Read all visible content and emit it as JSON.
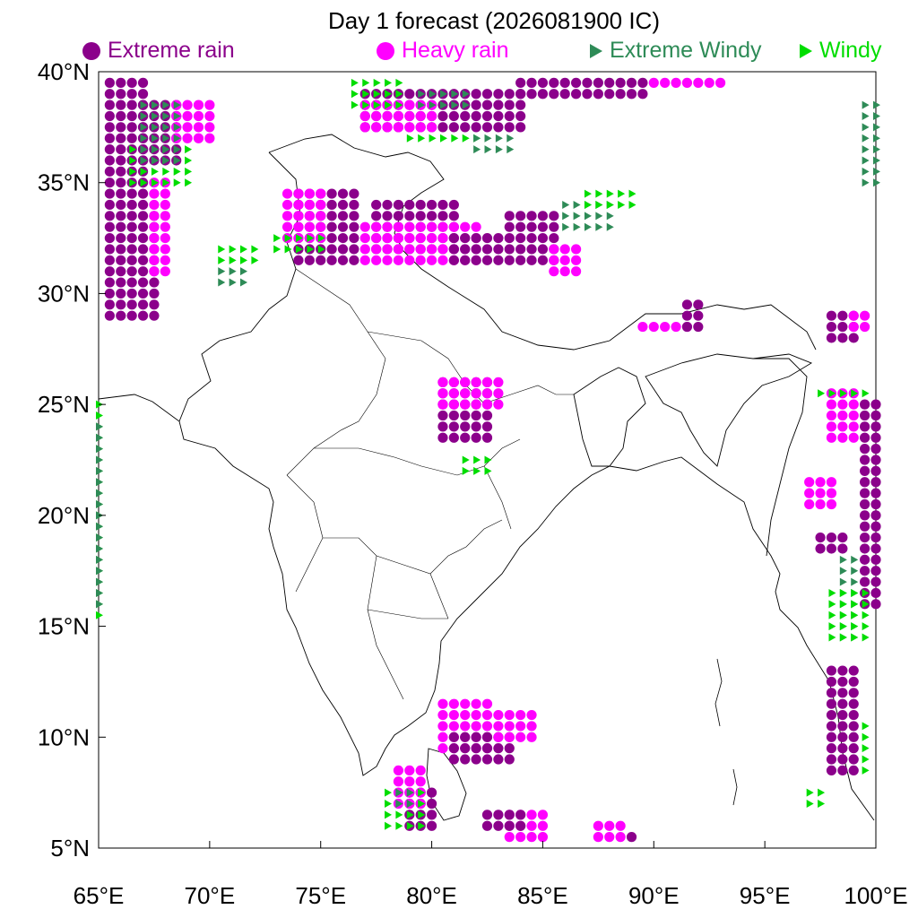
{
  "title": "Day 1 forecast (2026081900 IC)",
  "colors": {
    "extreme_rain": "#8b008b",
    "heavy_rain": "#ff00ff",
    "extreme_windy": "#2e8b57",
    "windy": "#00dd00",
    "border": "#000000"
  },
  "legend": [
    {
      "key": "extreme_rain",
      "label": "Extreme rain",
      "symbol": "circle"
    },
    {
      "key": "heavy_rain",
      "label": "Heavy rain",
      "symbol": "circle"
    },
    {
      "key": "extreme_windy",
      "label": "Extreme Windy",
      "symbol": "triangle"
    },
    {
      "key": "windy",
      "label": "Windy",
      "symbol": "triangle"
    }
  ],
  "map": {
    "lon_range": [
      65,
      100
    ],
    "lat_range": [
      5,
      40
    ],
    "grid_step": 0.5,
    "lon_ticks": [
      "65°E",
      "70°E",
      "75°E",
      "80°E",
      "85°E",
      "90°E",
      "95°E",
      "100°E"
    ],
    "lat_ticks": [
      "40°N",
      "35°N",
      "30°N",
      "25°N",
      "20°N",
      "15°N",
      "10°N",
      "5°N"
    ]
  },
  "rain_points": [
    {
      "type": "extreme_rain",
      "lon_range": [
        65.5,
        67
      ],
      "lat_range": [
        34,
        39.5
      ]
    },
    {
      "type": "extreme_rain",
      "lon_range": [
        67,
        68.5
      ],
      "lat_range": [
        36,
        38.5
      ]
    },
    {
      "type": "heavy_rain",
      "lon_range": [
        68.5,
        70
      ],
      "lat_range": [
        37,
        38.5
      ]
    },
    {
      "type": "extreme_rain",
      "lon_range": [
        65.5,
        67.5
      ],
      "lat_range": [
        29,
        33.5
      ]
    },
    {
      "type": "heavy_rain",
      "lon_range": [
        67.5,
        68
      ],
      "lat_range": [
        31,
        35
      ]
    },
    {
      "type": "extreme_rain",
      "lon_range": [
        74,
        76.5
      ],
      "lat_range": [
        31.5,
        34.5
      ]
    },
    {
      "type": "heavy_rain",
      "lon_range": [
        73.5,
        75
      ],
      "lat_range": [
        32.5,
        34.5
      ]
    },
    {
      "type": "extreme_rain",
      "lon_range": [
        77.5,
        81
      ],
      "lat_range": [
        32,
        34
      ]
    },
    {
      "type": "heavy_rain",
      "lon_range": [
        77,
        82
      ],
      "lat_range": [
        31.5,
        33
      ]
    },
    {
      "type": "extreme_rain",
      "lon_range": [
        81,
        83
      ],
      "lat_range": [
        31.5,
        32.5
      ]
    },
    {
      "type": "extreme_rain",
      "lon_range": [
        83.5,
        85.5
      ],
      "lat_range": [
        31.5,
        33.5
      ]
    },
    {
      "type": "heavy_rain",
      "lon_range": [
        85.5,
        86.5
      ],
      "lat_range": [
        31,
        32
      ]
    },
    {
      "type": "extreme_rain",
      "lon_range": [
        77,
        84
      ],
      "lat_range": [
        37.5,
        39
      ]
    },
    {
      "type": "heavy_rain",
      "lon_range": [
        77,
        80
      ],
      "lat_range": [
        37.5,
        38.5
      ]
    },
    {
      "type": "extreme_rain",
      "lon_range": [
        84,
        89.5
      ],
      "lat_range": [
        39,
        39.5
      ]
    },
    {
      "type": "heavy_rain",
      "lon_range": [
        90,
        93
      ],
      "lat_range": [
        39.5,
        39.5
      ]
    },
    {
      "type": "extreme_rain",
      "lon_range": [
        80.5,
        82.5
      ],
      "lat_range": [
        23.5,
        26
      ]
    },
    {
      "type": "heavy_rain",
      "lon_range": [
        80.5,
        83
      ],
      "lat_range": [
        25,
        26
      ]
    },
    {
      "type": "heavy_rain",
      "lon_range": [
        89.5,
        91.5
      ],
      "lat_range": [
        28.5,
        28.5
      ]
    },
    {
      "type": "extreme_rain",
      "lon_range": [
        91.5,
        92
      ],
      "lat_range": [
        28.5,
        29.5
      ]
    },
    {
      "type": "extreme_rain",
      "lon_range": [
        98,
        99
      ],
      "lat_range": [
        28,
        29
      ]
    },
    {
      "type": "heavy_rain",
      "lon_range": [
        99,
        99.5
      ],
      "lat_range": [
        28.5,
        29
      ]
    },
    {
      "type": "extreme_rain",
      "lon_range": [
        99.5,
        100
      ],
      "lat_range": [
        16,
        25
      ]
    },
    {
      "type": "heavy_rain",
      "lon_range": [
        98,
        99
      ],
      "lat_range": [
        23.5,
        25.5
      ]
    },
    {
      "type": "extreme_rain",
      "lon_range": [
        97.5,
        98.5
      ],
      "lat_range": [
        18.5,
        19
      ]
    },
    {
      "type": "heavy_rain",
      "lon_range": [
        97,
        98
      ],
      "lat_range": [
        20.5,
        21.5
      ]
    },
    {
      "type": "extreme_rain",
      "lon_range": [
        98,
        99
      ],
      "lat_range": [
        8.5,
        13
      ]
    },
    {
      "type": "heavy_rain",
      "lon_range": [
        80.5,
        82.5
      ],
      "lat_range": [
        9.5,
        11.5
      ]
    },
    {
      "type": "extreme_rain",
      "lon_range": [
        81,
        83.5
      ],
      "lat_range": [
        9,
        10
      ]
    },
    {
      "type": "heavy_rain",
      "lon_range": [
        83,
        84.5
      ],
      "lat_range": [
        10,
        11
      ]
    },
    {
      "type": "extreme_rain",
      "lon_range": [
        79,
        80
      ],
      "lat_range": [
        6,
        7.5
      ]
    },
    {
      "type": "heavy_rain",
      "lon_range": [
        78.5,
        79.5
      ],
      "lat_range": [
        7,
        8.5
      ]
    },
    {
      "type": "heavy_rain",
      "lon_range": [
        83.5,
        85
      ],
      "lat_range": [
        5.5,
        6.5
      ]
    },
    {
      "type": "extreme_rain",
      "lon_range": [
        82.5,
        84
      ],
      "lat_range": [
        6,
        6.5
      ]
    },
    {
      "type": "heavy_rain",
      "lon_range": [
        87.5,
        88.5
      ],
      "lat_range": [
        5.5,
        6
      ]
    },
    {
      "type": "extreme_rain",
      "lon_range": [
        89,
        89
      ],
      "lat_range": [
        5.5,
        5.5
      ]
    }
  ],
  "wind_points": [
    {
      "type": "windy",
      "lon_range": [
        76.5,
        78.5
      ],
      "lat_range": [
        38.5,
        39.5
      ]
    },
    {
      "type": "extreme_windy",
      "lon_range": [
        79.5,
        81.5
      ],
      "lat_range": [
        38.5,
        39
      ]
    },
    {
      "type": "windy",
      "lon_range": [
        79,
        82
      ],
      "lat_range": [
        37,
        37
      ]
    },
    {
      "type": "extreme_windy",
      "lon_range": [
        82,
        83.5
      ],
      "lat_range": [
        36.5,
        37
      ]
    },
    {
      "type": "windy",
      "lon_range": [
        70.5,
        72
      ],
      "lat_range": [
        31.5,
        32
      ]
    },
    {
      "type": "extreme_windy",
      "lon_range": [
        70.5,
        71.5
      ],
      "lat_range": [
        30.5,
        31
      ]
    },
    {
      "type": "windy",
      "lon_range": [
        73,
        75
      ],
      "lat_range": [
        32,
        32.5
      ]
    },
    {
      "type": "extreme_windy",
      "lon_range": [
        86,
        88
      ],
      "lat_range": [
        33,
        34
      ]
    },
    {
      "type": "windy",
      "lon_range": [
        87,
        89
      ],
      "lat_range": [
        34,
        34.5
      ]
    },
    {
      "type": "extreme_windy",
      "lon_range": [
        98.5,
        99
      ],
      "lat_range": [
        14.5,
        18
      ]
    },
    {
      "type": "windy",
      "lon_range": [
        98,
        99.5
      ],
      "lat_range": [
        14.5,
        16.5
      ]
    },
    {
      "type": "windy",
      "lon_range": [
        97.5,
        99.5
      ],
      "lat_range": [
        25.5,
        25.5
      ]
    },
    {
      "type": "windy",
      "lon_range": [
        97,
        97.5
      ],
      "lat_range": [
        7,
        7.5
      ]
    },
    {
      "type": "windy",
      "lon_range": [
        78,
        79.5
      ],
      "lat_range": [
        6,
        7.5
      ]
    },
    {
      "type": "extreme_windy",
      "lon_range": [
        78.5,
        79
      ],
      "lat_range": [
        7,
        7.5
      ]
    },
    {
      "type": "windy",
      "lon_range": [
        65,
        65
      ],
      "lat_range": [
        15.5,
        25
      ]
    },
    {
      "type": "extreme_windy",
      "lon_range": [
        65,
        65
      ],
      "lat_range": [
        16,
        24
      ]
    },
    {
      "type": "windy",
      "lon_range": [
        66.5,
        69
      ],
      "lat_range": [
        35,
        36.5
      ]
    },
    {
      "type": "extreme_windy",
      "lon_range": [
        67,
        68.5
      ],
      "lat_range": [
        36,
        38.5
      ]
    },
    {
      "type": "windy",
      "lon_range": [
        81.5,
        82.5
      ],
      "lat_range": [
        22,
        22.5
      ]
    },
    {
      "type": "windy",
      "lon_range": [
        99.5,
        99.5
      ],
      "lat_range": [
        8.5,
        10.5
      ]
    },
    {
      "type": "extreme_windy",
      "lon_range": [
        99.5,
        100
      ],
      "lat_range": [
        35,
        38.5
      ]
    }
  ]
}
